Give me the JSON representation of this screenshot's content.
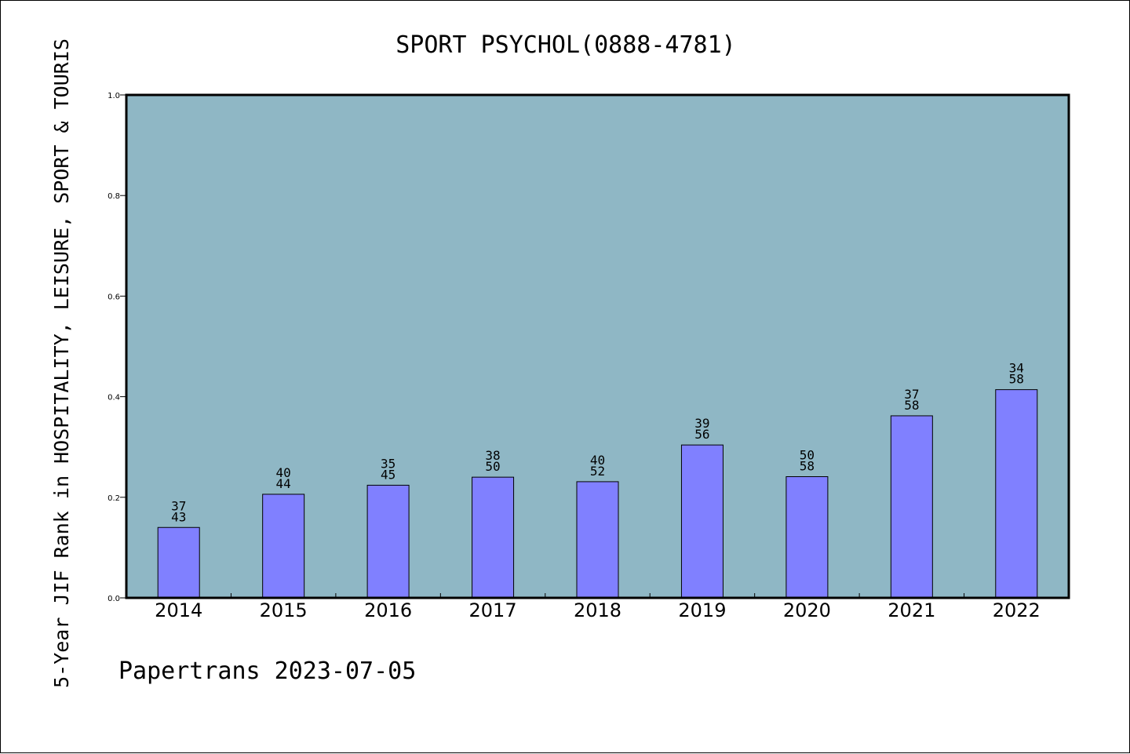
{
  "chart_data": {
    "type": "bar",
    "title": "SPORT PSYCHOL(0888-4781)",
    "ylabel": "5-Year JIF Rank in HOSPITALITY, LEISURE, SPORT & TOURIS",
    "xlabel": "",
    "footer": "Papertrans 2023-07-05",
    "categories": [
      "2014",
      "2015",
      "2016",
      "2017",
      "2018",
      "2019",
      "2020",
      "2021",
      "2022"
    ],
    "values": [
      0.14,
      0.206,
      0.224,
      0.24,
      0.231,
      0.304,
      0.241,
      0.362,
      0.414
    ],
    "bar_labels": [
      {
        "top": "37",
        "bottom": "43"
      },
      {
        "top": "40",
        "bottom": "44"
      },
      {
        "top": "35",
        "bottom": "45"
      },
      {
        "top": "38",
        "bottom": "50"
      },
      {
        "top": "40",
        "bottom": "52"
      },
      {
        "top": "39",
        "bottom": "56"
      },
      {
        "top": "50",
        "bottom": "58"
      },
      {
        "top": "37",
        "bottom": "58"
      },
      {
        "top": "34",
        "bottom": "58"
      }
    ],
    "ylim": [
      0,
      1.0
    ],
    "yticks": [
      "0.0",
      "0.2",
      "0.4",
      "0.6",
      "0.8",
      "1.0"
    ],
    "grid": false,
    "colors": {
      "plot_background": "#8fb7c5",
      "bar_fill": "#8080ff",
      "bar_stroke": "#000000",
      "axis": "#000000",
      "text": "#000000"
    }
  }
}
